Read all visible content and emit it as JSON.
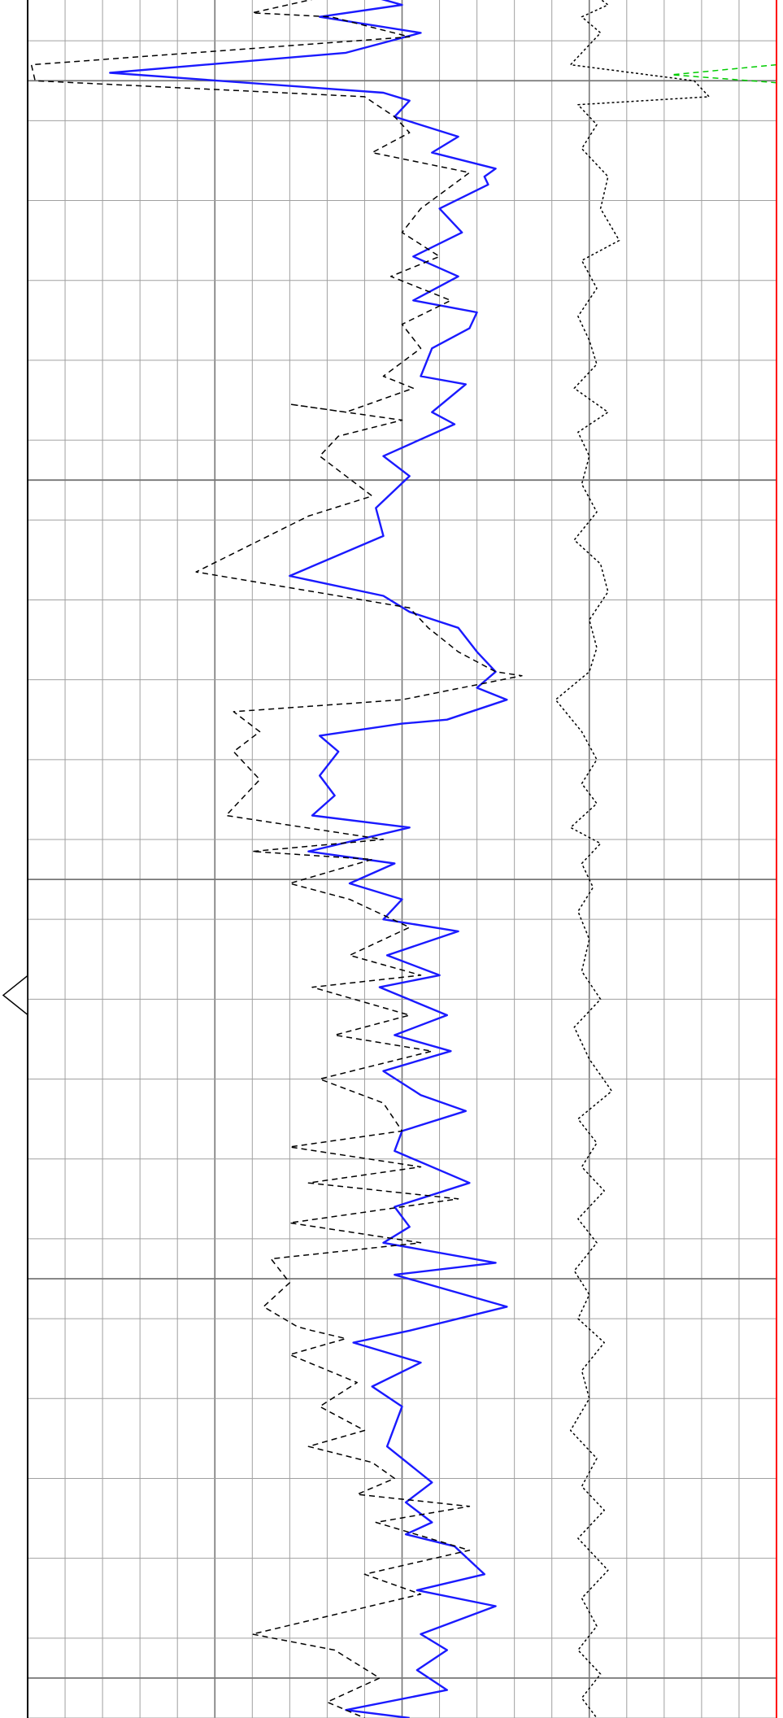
{
  "chart_data": {
    "type": "line",
    "title": "",
    "xlabel": "",
    "ylabel": "",
    "xlim": [
      0,
      20
    ],
    "ylim": [
      0,
      44
    ],
    "orientation": "vertical-depth",
    "grid": true,
    "legend": "none",
    "colors": {
      "background": "#ffffff",
      "grid_minor": "#a0a0a0",
      "grid_major": "#777777",
      "border": "#000000",
      "curve_solid": "#1a1aff",
      "curve_dashed": "#000000",
      "curve_dotted": "#000000",
      "curve_green": "#00cc00",
      "track_edge": "#ff0000"
    },
    "series": [
      {
        "style": "solid",
        "points": [
          [
            11,
            0
          ],
          [
            8.1,
            0.6
          ],
          [
            10,
            1.1
          ],
          [
            7.8,
            1.4
          ],
          [
            10.5,
            1.8
          ],
          [
            8.5,
            2.3
          ],
          [
            2.2,
            2.8
          ],
          [
            9.5,
            3.3
          ],
          [
            10.2,
            3.5
          ],
          [
            9.8,
            3.9
          ],
          [
            11.5,
            4.4
          ],
          [
            10.8,
            4.8
          ],
          [
            12.5,
            5.2
          ],
          [
            12.2,
            5.4
          ],
          [
            12.3,
            5.6
          ],
          [
            11,
            6.2
          ],
          [
            11.6,
            6.8
          ],
          [
            10.3,
            7.4
          ],
          [
            11.5,
            7.9
          ],
          [
            10.3,
            8.5
          ],
          [
            12,
            8.8
          ],
          [
            11.8,
            9.2
          ],
          [
            10.8,
            9.7
          ],
          [
            10.5,
            10.4
          ],
          [
            11.7,
            10.6
          ],
          [
            10.8,
            11.3
          ],
          [
            11.4,
            11.6
          ],
          [
            9.5,
            12.4
          ],
          [
            10.2,
            12.9
          ],
          [
            9.3,
            13.7
          ],
          [
            9.5,
            14.4
          ],
          [
            7.0,
            15.4
          ],
          [
            9.5,
            15.9
          ],
          [
            10.2,
            16.3
          ],
          [
            11.5,
            16.7
          ],
          [
            12.0,
            17.3
          ],
          [
            12.5,
            17.8
          ],
          [
            12.0,
            18.2
          ],
          [
            12.8,
            18.5
          ],
          [
            11.2,
            19
          ],
          [
            10,
            19.1
          ],
          [
            7.8,
            19.4
          ],
          [
            8.3,
            19.8
          ],
          [
            7.8,
            20.4
          ],
          [
            8.2,
            20.9
          ],
          [
            7.6,
            21.4
          ],
          [
            10.2,
            21.7
          ],
          [
            7.5,
            22.3
          ],
          [
            9.8,
            22.6
          ],
          [
            8.6,
            23.1
          ],
          [
            10.0,
            23.5
          ],
          [
            9.5,
            24.0
          ],
          [
            11.5,
            24.3
          ],
          [
            9.6,
            24.9
          ],
          [
            11,
            25.4
          ],
          [
            9.4,
            25.7
          ],
          [
            11.2,
            26.4
          ],
          [
            9.8,
            26.9
          ],
          [
            11.3,
            27.3
          ],
          [
            9.5,
            27.8
          ],
          [
            10.5,
            28.4
          ],
          [
            11.7,
            28.8
          ],
          [
            10.0,
            29.3
          ],
          [
            9.8,
            29.8
          ],
          [
            11.8,
            30.6
          ],
          [
            9.8,
            31.2
          ],
          [
            10.2,
            31.7
          ],
          [
            9.5,
            32.1
          ],
          [
            12.5,
            32.6
          ],
          [
            9.8,
            32.9
          ],
          [
            12.8,
            33.7
          ],
          [
            10.2,
            34.3
          ],
          [
            8.7,
            34.6
          ],
          [
            10.5,
            35.1
          ],
          [
            9.2,
            35.7
          ],
          [
            10,
            36.2
          ],
          [
            9.6,
            37.2
          ],
          [
            10.8,
            38.1
          ],
          [
            10.1,
            38.6
          ],
          [
            10.8,
            39.1
          ],
          [
            10.1,
            39.4
          ],
          [
            11.4,
            39.7
          ],
          [
            12.2,
            40.4
          ],
          [
            10.4,
            40.8
          ],
          [
            12.5,
            41.2
          ],
          [
            10.5,
            41.9
          ],
          [
            11.2,
            42.3
          ],
          [
            10.4,
            42.8
          ],
          [
            11.2,
            43.3
          ],
          [
            8.5,
            43.8
          ],
          [
            10.2,
            44
          ]
        ]
      },
      {
        "style": "dashed",
        "points": [
          [
            8.3,
            0.4
          ],
          [
            6.0,
            0.6
          ],
          [
            7.9,
            0.9
          ],
          [
            6.0,
            1.3
          ],
          [
            8.1,
            1.4
          ],
          [
            10.2,
            1.9
          ],
          [
            0.1,
            2.6
          ],
          [
            0.2,
            3.0
          ],
          [
            9.0,
            3.4
          ],
          [
            9.8,
            3.9
          ],
          [
            10.2,
            4.3
          ],
          [
            9.2,
            4.8
          ],
          [
            11.8,
            5.3
          ],
          [
            10.5,
            6.2
          ],
          [
            10.0,
            6.8
          ],
          [
            11.0,
            7.4
          ],
          [
            9.7,
            7.9
          ],
          [
            11.3,
            8.5
          ],
          [
            10.0,
            9.1
          ],
          [
            10.5,
            9.7
          ],
          [
            9.5,
            10.4
          ],
          [
            10.3,
            10.7
          ],
          [
            8.5,
            11.3
          ],
          [
            7.0,
            11.1
          ],
          [
            10.0,
            11.5
          ],
          [
            8.3,
            11.9
          ],
          [
            7.8,
            12.4
          ],
          [
            9.2,
            13.4
          ],
          [
            7.5,
            13.9
          ],
          [
            4.5,
            15.3
          ],
          [
            10.2,
            16.2
          ],
          [
            10.7,
            16.7
          ],
          [
            11.5,
            17.3
          ],
          [
            12.5,
            17.8
          ],
          [
            13.2,
            17.9
          ],
          [
            10.0,
            18.5
          ],
          [
            5.5,
            18.8
          ],
          [
            6.2,
            19.3
          ],
          [
            5.5,
            19.8
          ],
          [
            6.2,
            20.5
          ],
          [
            5.3,
            21.4
          ],
          [
            9.5,
            22.0
          ],
          [
            6.0,
            22.3
          ],
          [
            9.2,
            22.5
          ],
          [
            7.0,
            23.1
          ],
          [
            8.6,
            23.5
          ],
          [
            10.2,
            24.2
          ],
          [
            8.6,
            24.9
          ],
          [
            10.5,
            25.4
          ],
          [
            7.6,
            25.7
          ],
          [
            10.2,
            26.4
          ],
          [
            8.2,
            26.9
          ],
          [
            10.8,
            27.3
          ],
          [
            7.8,
            28.0
          ],
          [
            9.5,
            28.6
          ],
          [
            10.0,
            29.3
          ],
          [
            7.0,
            29.7
          ],
          [
            10.5,
            30.2
          ],
          [
            7.5,
            30.6
          ],
          [
            11.5,
            31.0
          ],
          [
            7.0,
            31.6
          ],
          [
            10.5,
            32.1
          ],
          [
            6.5,
            32.5
          ],
          [
            7.0,
            33.1
          ],
          [
            6.3,
            33.7
          ],
          [
            7.2,
            34.2
          ],
          [
            7.6,
            34.3
          ],
          [
            8.5,
            34.5
          ],
          [
            7.0,
            34.9
          ],
          [
            8.8,
            35.6
          ],
          [
            7.8,
            36.2
          ],
          [
            9.0,
            36.8
          ],
          [
            7.5,
            37.2
          ],
          [
            9.2,
            37.6
          ],
          [
            9.8,
            38.0
          ],
          [
            8.8,
            38.4
          ],
          [
            11.8,
            38.7
          ],
          [
            9.3,
            39.1
          ],
          [
            11.8,
            39.8
          ],
          [
            9.0,
            40.4
          ],
          [
            10.5,
            40.9
          ],
          [
            6.0,
            41.9
          ],
          [
            8.2,
            42.3
          ],
          [
            9.4,
            43.0
          ],
          [
            8.0,
            43.6
          ],
          [
            9.0,
            44
          ]
        ]
      },
      {
        "style": "dotted",
        "points": [
          [
            15.2,
            0
          ],
          [
            14.8,
            0.6
          ],
          [
            15.5,
            1.1
          ],
          [
            14.8,
            1.4
          ],
          [
            15.3,
            1.8
          ],
          [
            14.5,
            2.6
          ],
          [
            17.8,
            3.0
          ],
          [
            18.2,
            3.4
          ],
          [
            14.7,
            3.6
          ],
          [
            15.2,
            4.1
          ],
          [
            14.8,
            4.7
          ],
          [
            15.5,
            5.4
          ],
          [
            15.3,
            6.2
          ],
          [
            15.8,
            7.0
          ],
          [
            14.8,
            7.5
          ],
          [
            15.2,
            8.2
          ],
          [
            14.7,
            8.9
          ],
          [
            15.0,
            9.5
          ],
          [
            15.2,
            10.1
          ],
          [
            14.6,
            10.7
          ],
          [
            15.5,
            11.3
          ],
          [
            14.7,
            11.8
          ],
          [
            15.0,
            12.4
          ],
          [
            14.8,
            13.1
          ],
          [
            15.2,
            13.8
          ],
          [
            14.6,
            14.5
          ],
          [
            15.3,
            15.1
          ],
          [
            15.5,
            15.8
          ],
          [
            15.0,
            16.5
          ],
          [
            15.2,
            17.2
          ],
          [
            15.0,
            17.8
          ],
          [
            14.1,
            18.5
          ],
          [
            14.8,
            19.3
          ],
          [
            15.2,
            20.0
          ],
          [
            14.8,
            20.6
          ],
          [
            15.2,
            21.1
          ],
          [
            14.5,
            21.7
          ],
          [
            15.3,
            22.1
          ],
          [
            14.8,
            22.6
          ],
          [
            15.1,
            23.2
          ],
          [
            14.7,
            23.8
          ],
          [
            15.0,
            24.5
          ],
          [
            14.8,
            25.3
          ],
          [
            15.3,
            26.0
          ],
          [
            14.6,
            26.7
          ],
          [
            15.0,
            27.5
          ],
          [
            15.6,
            28.3
          ],
          [
            14.7,
            29.0
          ],
          [
            15.2,
            29.6
          ],
          [
            14.8,
            30.2
          ],
          [
            15.4,
            30.8
          ],
          [
            14.7,
            31.5
          ],
          [
            15.2,
            32.1
          ],
          [
            14.6,
            32.8
          ],
          [
            15.0,
            33.4
          ],
          [
            14.7,
            34.0
          ],
          [
            15.4,
            34.6
          ],
          [
            14.8,
            35.3
          ],
          [
            15.0,
            36.0
          ],
          [
            14.5,
            36.8
          ],
          [
            15.2,
            37.5
          ],
          [
            14.8,
            38.2
          ],
          [
            15.4,
            38.8
          ],
          [
            14.7,
            39.5
          ],
          [
            15.5,
            40.3
          ],
          [
            14.8,
            41.0
          ],
          [
            15.2,
            41.7
          ],
          [
            14.7,
            42.3
          ],
          [
            15.3,
            42.9
          ],
          [
            14.8,
            43.5
          ],
          [
            15.2,
            44
          ]
        ]
      },
      {
        "style": "dashed-green",
        "points": [
          [
            20,
            2.6
          ],
          [
            17.2,
            2.85
          ],
          [
            20,
            3.05
          ]
        ]
      }
    ],
    "marker": {
      "depth": 25.9
    }
  }
}
